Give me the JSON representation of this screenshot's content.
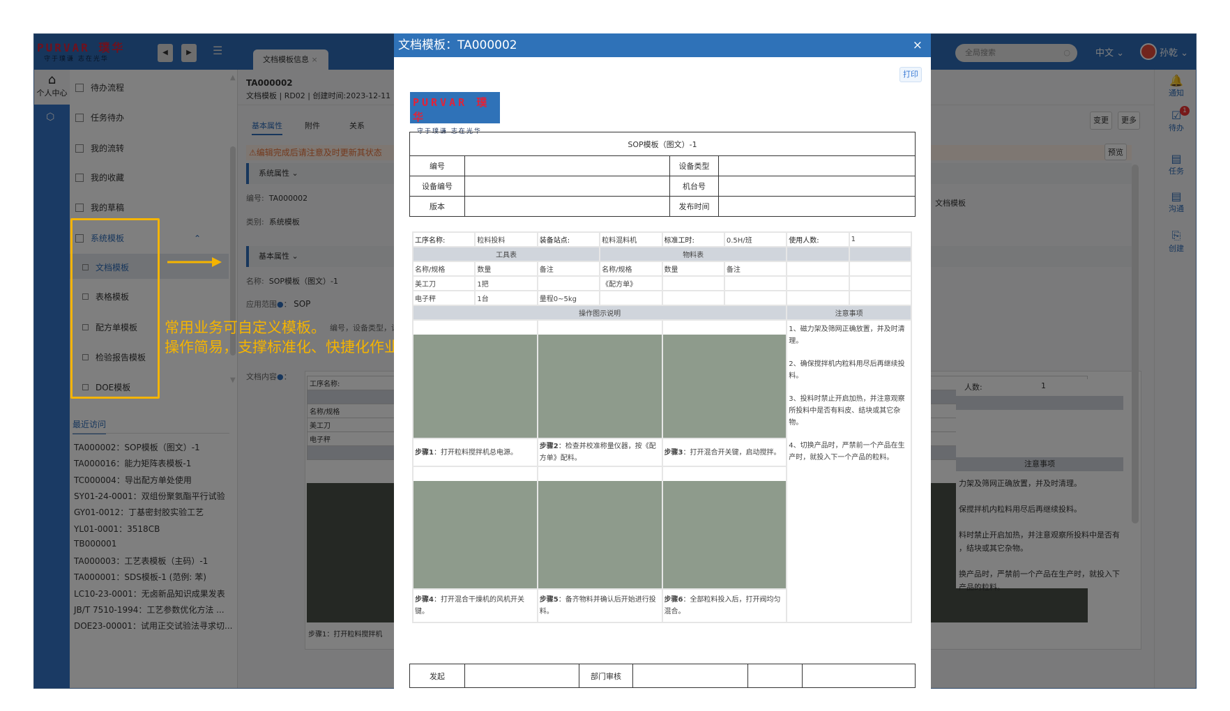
{
  "app": {
    "brand": "PURVAR 璞华",
    "slogan": "守于璞谦 志在光华",
    "tab_label": "文档模板信息",
    "search_placeholder": "全局搜索",
    "language": "中文",
    "user": "孙乾",
    "home_label": "个人中心"
  },
  "menu": {
    "items": [
      "待办流程",
      "任务待办",
      "我的流转",
      "我的收藏",
      "我的草稿"
    ],
    "group": "系统模板",
    "sub_items": [
      "文档模板",
      "表格模板",
      "配方单模板",
      "检验报告模板",
      "DOE模板"
    ],
    "recent_title": "最近访问",
    "recent": [
      "TA000002：SOP模板（图文）-1",
      "TA000016：能力矩阵表模板-1",
      "TC000004：导出配方单处使用",
      "SY01-24-0001：双组份聚氨酯平行试验",
      "GY01-0012：丁基密封胶实验工艺",
      "YL01-0001：3518CB",
      "TB000001",
      "TA000003：工艺表模板（主码）-1",
      "TA000001：SDS模板-1 (范例: 苯)",
      "LC10-23-0001：无卤新品知识成果发表",
      "JB/T 7510-1994：工艺参数优化方法 ...",
      "DOE23-00001：试用正交试验法寻求切..."
    ]
  },
  "detail": {
    "code": "TA000002",
    "subtitle": "文档模板 | RD02 | 创建时间:2023-12-11",
    "tabs": [
      "基本属性",
      "附件",
      "关系"
    ],
    "warning": "⚠编辑完成后请注意及时更新其状态",
    "section_system": "系统属性",
    "code_label": "编号:",
    "code_value": "TA000002",
    "category_label": "类别:",
    "category_value": "系统模板",
    "section_basic": "基本属性",
    "name_label": "名称:",
    "name_value": "SOP模板（图文）-1",
    "scope_label": "应用范围",
    "scope_value": "SOP",
    "hidden_row": "编号，设备类型，设备",
    "content_label": "文档内容",
    "preview_rows": [
      "工序名称:",
      "",
      "名称/规格",
      "美工刀",
      "电子秤",
      ""
    ],
    "preview_step": "步骤1：打开粒料搅拌机",
    "change_btn": "变更",
    "more_btn": "更多",
    "preview_btn": "预览",
    "type_text": "文档模板",
    "right_count_label": "人数:",
    "right_count_value": "1",
    "right_notes_title": "注意事项",
    "right_notes": [
      "力架及筛网正确放置，并及时清理。",
      "保搅拌机内粒料用尽后再继续投料。",
      "料时禁止开启加热，并注意观察所投料中是否有",
      "，结块或其它杂物。",
      "换产品时，严禁前一个产品在生产时，就投入下",
      "产品的粒料。"
    ]
  },
  "right_rail": [
    {
      "label": "通知",
      "icon": "bell-icon"
    },
    {
      "label": "待办",
      "icon": "todo-icon",
      "badge": "1"
    },
    {
      "label": "任务",
      "icon": "task-icon"
    },
    {
      "label": "沟通",
      "icon": "chat-icon"
    },
    {
      "label": "创建",
      "icon": "create-icon"
    }
  ],
  "annotation": {
    "line1": "常用业务可自定义模板。",
    "line2": "操作简易，支撑标准化、快捷化作业",
    "color": "#f5b400"
  },
  "modal": {
    "title": "文档模板：TA000002",
    "close": "×",
    "print": "打印",
    "doc_title": "SOP模板（图文）-1",
    "header_rows": [
      [
        "编号",
        "",
        "设备类型",
        ""
      ],
      [
        "设备编号",
        "",
        "机台号",
        ""
      ],
      [
        "版本",
        "",
        "发布时间",
        ""
      ]
    ],
    "info_row": [
      "工序名称:",
      "粒料投料",
      "装备站点:",
      "粒料混料机",
      "标准工时:",
      "0.5H/班",
      "使用人数:",
      "1"
    ],
    "tool_table": "工具表",
    "material_table": "物料表",
    "col_headers": [
      "名称/规格",
      "数量",
      "备注",
      "名称/规格",
      "数量",
      "备注"
    ],
    "rows": [
      [
        "美工刀",
        "1把",
        "",
        "《配方单》",
        "",
        ""
      ],
      [
        "电子秤",
        "1台",
        "量程0~5kg",
        "",
        "",
        ""
      ]
    ],
    "ops_title": "操作图示说明",
    "notes_title": "注意事项",
    "steps": [
      {
        "label": "步骤1",
        "text": "：打开粒料搅拌机总电源。"
      },
      {
        "label": "步骤2",
        "text": "：检查并校准称量仪器，按《配方单》配料。"
      },
      {
        "label": "步骤3",
        "text": "：打开混合开关键，启动搅拌。"
      },
      {
        "label": "步骤4",
        "text": "：打开混合干燥机的风机开关键。"
      },
      {
        "label": "步骤5",
        "text": "：备齐物料并确认后开始进行投料。"
      },
      {
        "label": "步骤6",
        "text": "：全部粒料投入后，打开阀均匀混合。"
      }
    ],
    "notes": [
      "1、磁力架及筛网正确放置，并及时清理。",
      "2、确保搅拌机内粒料用尽后再继续投料。",
      "3、投料时禁止开启加热，并注意观察所投料中是否有料皮、结块或其它杂物。",
      "4、切换产品时，严禁前一个产品在生产时，就投入下一个产品的粒料。"
    ],
    "footer": [
      "发起",
      "",
      "部门审核",
      "",
      "",
      ""
    ]
  }
}
